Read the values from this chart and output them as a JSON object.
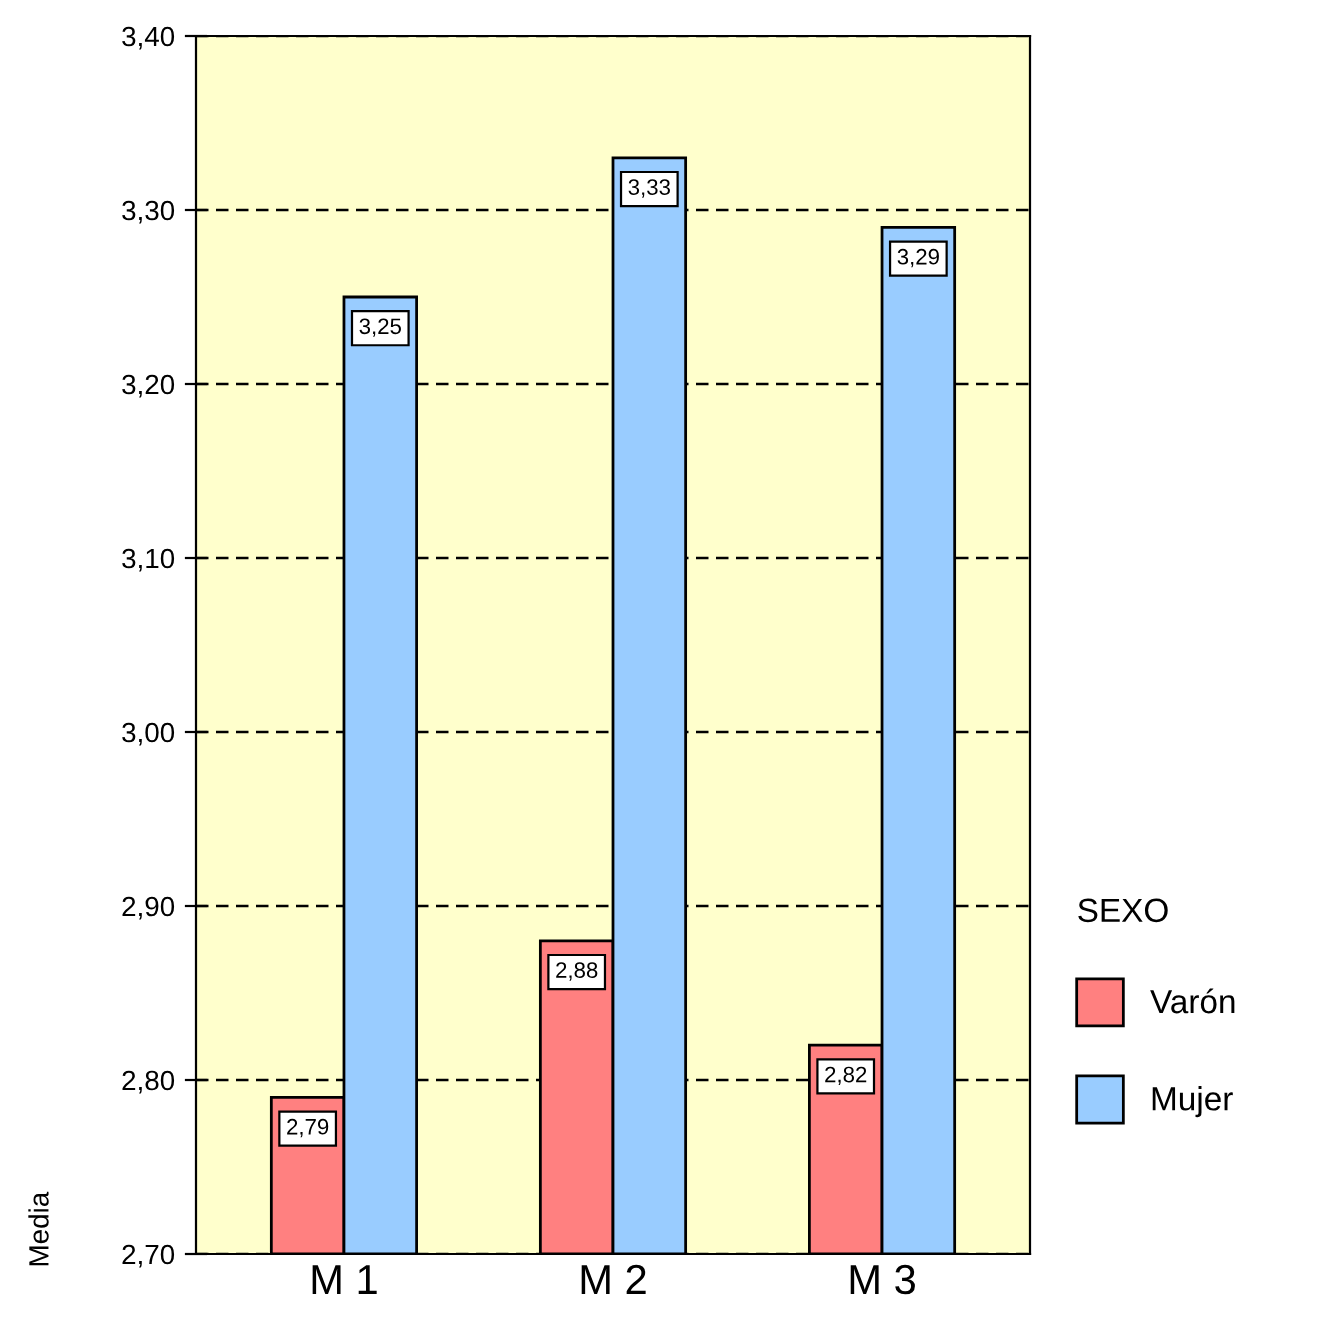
{
  "chart_data": {
    "type": "bar",
    "ylabel": "Media",
    "legend_title": "SEXO",
    "categories": [
      "M 1",
      "M 2",
      "M 3"
    ],
    "series": [
      {
        "name": "Varón",
        "color": "#ff8080",
        "values": [
          2.79,
          2.88,
          2.82
        ],
        "value_labels": [
          "2,79",
          "2,88",
          "2,82"
        ]
      },
      {
        "name": "Mujer",
        "color": "#99ccff",
        "values": [
          3.25,
          3.33,
          3.29
        ],
        "value_labels": [
          "3,25",
          "3,33",
          "3,29"
        ]
      }
    ],
    "ylim": [
      2.7,
      3.4
    ],
    "yticks": [
      {
        "value": 2.7,
        "label": "2,70"
      },
      {
        "value": 2.8,
        "label": "2,80"
      },
      {
        "value": 2.9,
        "label": "2,90"
      },
      {
        "value": 3.0,
        "label": "3,00"
      },
      {
        "value": 3.1,
        "label": "3,10"
      },
      {
        "value": 3.2,
        "label": "3,20"
      },
      {
        "value": 3.3,
        "label": "3,30"
      },
      {
        "value": 3.4,
        "label": "3,40"
      }
    ],
    "grid": "y",
    "legend": "right"
  }
}
